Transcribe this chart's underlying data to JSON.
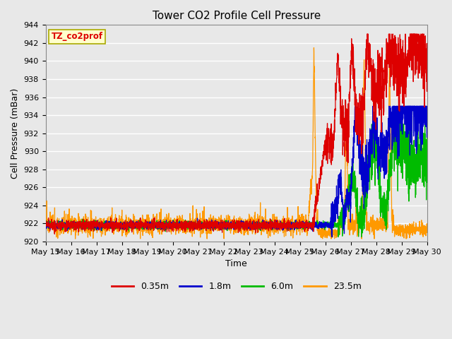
{
  "title": "Tower CO2 Profile Cell Pressure",
  "xlabel": "Time",
  "ylabel": "Cell Pressure (mBar)",
  "ylim": [
    920,
    944
  ],
  "yticks": [
    920,
    922,
    924,
    926,
    928,
    930,
    932,
    934,
    936,
    938,
    940,
    942,
    944
  ],
  "xtick_labels": [
    "May 15",
    "May 16",
    "May 17",
    "May 18",
    "May 19",
    "May 20",
    "May 21",
    "May 22",
    "May 23",
    "May 24",
    "May 25",
    "May 26",
    "May 27",
    "May 28",
    "May 29",
    "May 30"
  ],
  "legend_labels": [
    "0.35m",
    "1.8m",
    "6.0m",
    "23.5m"
  ],
  "line_colors": [
    "#dd0000",
    "#0000cc",
    "#00bb00",
    "#ff9900"
  ],
  "annotation_text": "TZ_co2prof",
  "annotation_color": "#dd0000",
  "annotation_bg": "#ffffcc",
  "plot_bg": "#e8e8e8",
  "fig_bg": "#e8e8e8",
  "grid_color": "#ffffff",
  "title_fontsize": 11,
  "axis_label_fontsize": 9,
  "tick_fontsize": 8
}
